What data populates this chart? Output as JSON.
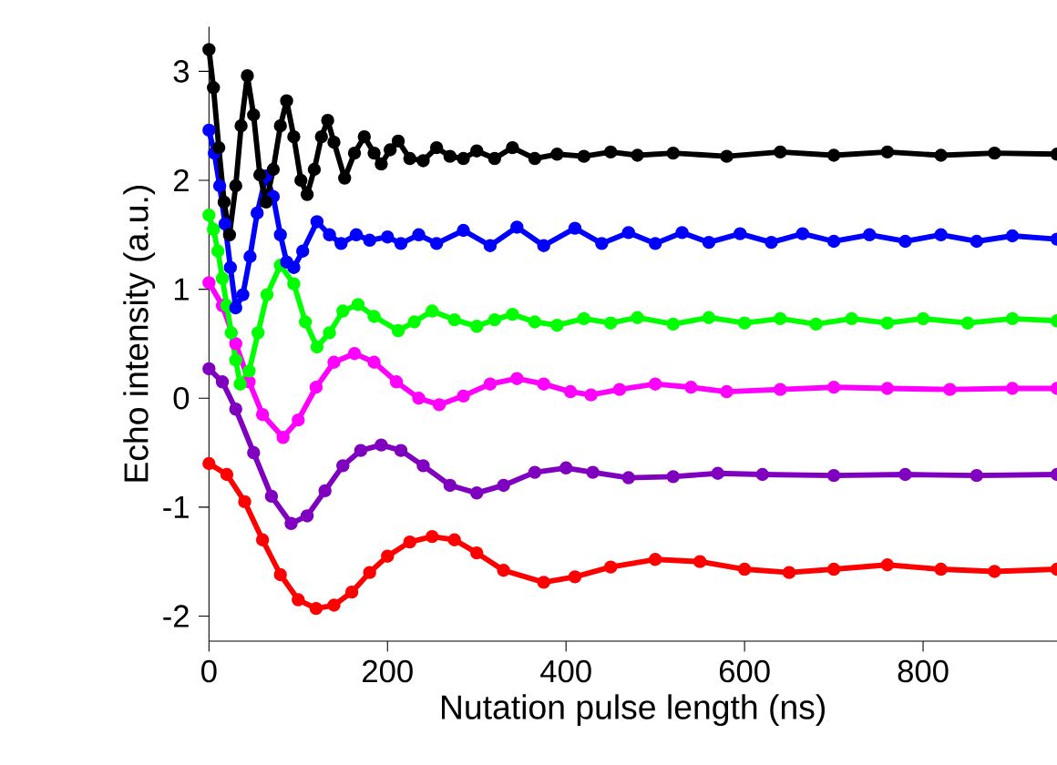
{
  "chart_data": {
    "type": "line",
    "xlabel": "Nutation pulse length (ns)",
    "ylabel": "Echo intensity (a.u.)",
    "xlim": [
      0,
      950
    ],
    "ylim": [
      -2.23,
      3.41
    ],
    "xticks": [
      0,
      200,
      400,
      600,
      800
    ],
    "yticks": [
      -2,
      -1,
      0,
      1,
      2,
      3
    ],
    "marker": "circle",
    "grid": false,
    "legend": false,
    "series": [
      {
        "color": "#000000",
        "x": [
          0,
          5,
          11,
          17,
          23,
          30,
          36,
          43,
          50,
          57,
          64,
          72,
          80,
          87,
          95,
          103,
          110,
          118,
          126,
          133,
          140,
          152,
          163,
          174,
          185,
          193,
          203,
          212,
          225,
          240,
          255,
          270,
          285,
          300,
          320,
          340,
          365,
          390,
          420,
          450,
          480,
          520,
          580,
          640,
          700,
          760,
          820,
          880,
          950
        ],
        "values": [
          3.2,
          2.85,
          2.3,
          1.8,
          1.5,
          1.95,
          2.5,
          2.96,
          2.6,
          2.05,
          1.8,
          2.1,
          2.5,
          2.73,
          2.4,
          2.0,
          1.87,
          2.1,
          2.4,
          2.55,
          2.35,
          2.02,
          2.25,
          2.4,
          2.25,
          2.15,
          2.28,
          2.36,
          2.2,
          2.18,
          2.3,
          2.22,
          2.2,
          2.27,
          2.2,
          2.3,
          2.2,
          2.24,
          2.22,
          2.26,
          2.23,
          2.25,
          2.22,
          2.26,
          2.23,
          2.26,
          2.23,
          2.25,
          2.24
        ]
      },
      {
        "color": "#0000ff",
        "x": [
          0,
          6,
          12,
          18,
          24,
          30,
          38,
          46,
          54,
          64,
          72,
          80,
          87,
          95,
          105,
          121,
          135,
          148,
          165,
          180,
          200,
          215,
          235,
          255,
          285,
          315,
          345,
          375,
          410,
          440,
          470,
          500,
          530,
          560,
          595,
          630,
          665,
          700,
          740,
          780,
          820,
          860,
          900,
          950
        ],
        "values": [
          2.46,
          2.25,
          1.95,
          1.6,
          1.2,
          0.83,
          0.95,
          1.3,
          1.7,
          2.04,
          1.85,
          1.5,
          1.25,
          1.2,
          1.35,
          1.62,
          1.5,
          1.42,
          1.5,
          1.45,
          1.48,
          1.42,
          1.5,
          1.42,
          1.54,
          1.4,
          1.57,
          1.4,
          1.56,
          1.42,
          1.52,
          1.42,
          1.52,
          1.43,
          1.51,
          1.43,
          1.51,
          1.44,
          1.5,
          1.44,
          1.5,
          1.44,
          1.49,
          1.46
        ]
      },
      {
        "color": "#00ff00",
        "x": [
          0,
          5,
          10,
          15,
          20,
          25,
          30,
          35,
          45,
          55,
          65,
          80,
          95,
          108,
          121,
          135,
          150,
          167,
          185,
          212,
          230,
          250,
          275,
          300,
          320,
          340,
          365,
          390,
          420,
          450,
          480,
          520,
          560,
          600,
          640,
          680,
          720,
          760,
          800,
          850,
          900,
          950
        ],
        "values": [
          1.68,
          1.55,
          1.35,
          1.1,
          0.85,
          0.6,
          0.35,
          0.13,
          0.25,
          0.6,
          0.95,
          1.22,
          1.05,
          0.7,
          0.47,
          0.6,
          0.8,
          0.86,
          0.75,
          0.62,
          0.7,
          0.8,
          0.72,
          0.66,
          0.72,
          0.77,
          0.7,
          0.67,
          0.73,
          0.69,
          0.74,
          0.68,
          0.74,
          0.69,
          0.73,
          0.68,
          0.73,
          0.69,
          0.73,
          0.69,
          0.73,
          0.71
        ]
      },
      {
        "color": "#ff00ff",
        "x": [
          0,
          15,
          30,
          45,
          60,
          83,
          100,
          120,
          140,
          163,
          185,
          210,
          235,
          258,
          285,
          315,
          345,
          375,
          405,
          428,
          460,
          500,
          540,
          580,
          640,
          700,
          760,
          830,
          900,
          950
        ],
        "values": [
          1.06,
          0.85,
          0.5,
          0.15,
          -0.15,
          -0.36,
          -0.2,
          0.1,
          0.33,
          0.41,
          0.33,
          0.15,
          0.0,
          -0.06,
          0.02,
          0.13,
          0.18,
          0.13,
          0.06,
          0.03,
          0.08,
          0.13,
          0.1,
          0.06,
          0.08,
          0.1,
          0.09,
          0.08,
          0.09,
          0.09
        ]
      },
      {
        "color": "#7f00bf",
        "x": [
          0,
          15,
          30,
          50,
          70,
          92,
          110,
          130,
          150,
          170,
          193,
          215,
          240,
          270,
          300,
          330,
          365,
          400,
          430,
          470,
          520,
          570,
          620,
          700,
          780,
          860,
          950
        ],
        "values": [
          0.27,
          0.15,
          -0.1,
          -0.5,
          -0.9,
          -1.15,
          -1.08,
          -0.85,
          -0.62,
          -0.48,
          -0.43,
          -0.48,
          -0.62,
          -0.8,
          -0.87,
          -0.8,
          -0.68,
          -0.64,
          -0.68,
          -0.73,
          -0.72,
          -0.69,
          -0.7,
          -0.71,
          -0.7,
          -0.71,
          -0.7
        ]
      },
      {
        "color": "#ff0000",
        "x": [
          0,
          20,
          40,
          60,
          80,
          100,
          120,
          140,
          160,
          180,
          200,
          225,
          250,
          275,
          300,
          330,
          375,
          410,
          450,
          500,
          550,
          600,
          650,
          700,
          760,
          820,
          880,
          950
        ],
        "values": [
          -0.6,
          -0.7,
          -0.95,
          -1.3,
          -1.62,
          -1.85,
          -1.93,
          -1.9,
          -1.78,
          -1.6,
          -1.45,
          -1.32,
          -1.27,
          -1.3,
          -1.42,
          -1.58,
          -1.69,
          -1.64,
          -1.55,
          -1.48,
          -1.5,
          -1.57,
          -1.6,
          -1.57,
          -1.53,
          -1.57,
          -1.59,
          -1.57
        ]
      }
    ]
  }
}
